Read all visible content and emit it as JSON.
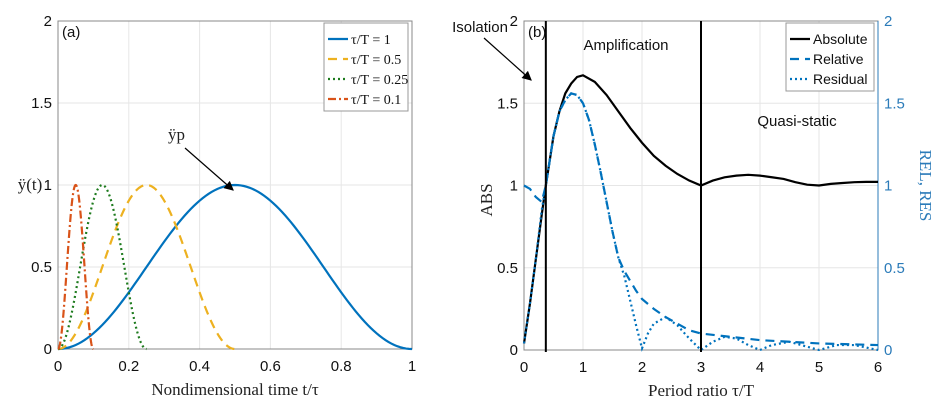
{
  "chart_data": [
    {
      "type": "line",
      "panel_label": "(a)",
      "xlabel": "Nondimensional time t/τ",
      "ylabel": "ÿ(t)",
      "xlim": [
        0,
        1
      ],
      "ylim": [
        0,
        2
      ],
      "xticks": [
        "0",
        "0.2",
        "0.4",
        "0.6",
        "0.8",
        "1"
      ],
      "yticks": [
        "0",
        "0.5",
        "1",
        "1.5",
        "2"
      ],
      "grid": true,
      "legend_position": "top-right",
      "annotation": "ÿp",
      "series": [
        {
          "name": "τ/T = 1",
          "duration": 1,
          "color": "#0072BD",
          "style": "solid"
        },
        {
          "name": "τ/T = 0.5",
          "duration": 0.5,
          "color": "#EDB120",
          "style": "dashed"
        },
        {
          "name": "τ/T = 0.25",
          "duration": 0.25,
          "color": "#1E7B1E",
          "style": "dotted"
        },
        {
          "name": "τ/T = 0.1",
          "duration": 0.1,
          "color": "#D95319",
          "style": "dashdot"
        }
      ]
    },
    {
      "type": "line",
      "panel_label": "(b)",
      "xlabel": "Period ratio τ/T",
      "ylabel": "ABS",
      "ylabel_right": "REL, RES",
      "xlim": [
        0,
        6
      ],
      "ylim": [
        0,
        2
      ],
      "ylim_right": [
        0,
        2
      ],
      "xticks": [
        "0",
        "1",
        "2",
        "3",
        "4",
        "5",
        "6"
      ],
      "yticks": [
        "0",
        "0.5",
        "1",
        "1.5",
        "2"
      ],
      "yticks_right": [
        "0",
        "0.5",
        "1",
        "1.5",
        "2"
      ],
      "grid": true,
      "legend_position": "top-right",
      "vertical_lines": [
        0.37,
        3
      ],
      "region_labels": [
        "Isolation",
        "Amplification",
        "Quasi-static"
      ],
      "series": [
        {
          "name": "Absolute",
          "color": "#000000",
          "style": "solid",
          "axis": "left",
          "x": [
            0,
            0.1,
            0.2,
            0.3,
            0.37,
            0.5,
            0.6,
            0.7,
            0.8,
            0.9,
            1,
            1.2,
            1.4,
            1.6,
            1.8,
            2,
            2.2,
            2.4,
            2.6,
            2.8,
            3,
            3.2,
            3.4,
            3.6,
            3.8,
            4,
            4.2,
            4.4,
            4.6,
            4.8,
            5,
            5.2,
            5.4,
            5.6,
            5.8,
            6
          ],
          "y": [
            0.04,
            0.28,
            0.55,
            0.82,
            1.0,
            1.3,
            1.45,
            1.56,
            1.62,
            1.66,
            1.67,
            1.63,
            1.55,
            1.45,
            1.35,
            1.26,
            1.18,
            1.12,
            1.07,
            1.03,
            1.0,
            1.03,
            1.05,
            1.06,
            1.065,
            1.06,
            1.05,
            1.04,
            1.02,
            1.005,
            1.0,
            1.01,
            1.015,
            1.02,
            1.022,
            1.022
          ]
        },
        {
          "name": "Relative",
          "color": "#0072BD",
          "style": "dashed",
          "axis": "right",
          "x": [
            0,
            0.1,
            0.2,
            0.3,
            0.37,
            0.5,
            0.6,
            0.7,
            0.8,
            0.9,
            1,
            1.1,
            1.2,
            1.3,
            1.4,
            1.5,
            1.6,
            1.7,
            1.8,
            1.9,
            2,
            2.2,
            2.4,
            2.6,
            2.8,
            3,
            3.5,
            4,
            4.5,
            5,
            5.5,
            6
          ],
          "y": [
            1.0,
            0.98,
            0.93,
            0.9,
            1.0,
            1.3,
            1.45,
            1.52,
            1.56,
            1.55,
            1.5,
            1.4,
            1.25,
            1.08,
            0.9,
            0.72,
            0.56,
            0.48,
            0.42,
            0.36,
            0.31,
            0.25,
            0.2,
            0.16,
            0.12,
            0.1,
            0.08,
            0.06,
            0.05,
            0.04,
            0.035,
            0.03
          ]
        },
        {
          "name": "Residual",
          "color": "#0072BD",
          "style": "dotted",
          "axis": "right",
          "x": [
            0,
            0.1,
            0.2,
            0.3,
            0.37,
            0.5,
            0.6,
            0.7,
            0.8,
            0.9,
            1,
            1.1,
            1.2,
            1.3,
            1.4,
            1.5,
            1.6,
            1.7,
            1.8,
            1.9,
            2,
            2.1,
            2.2,
            2.4,
            2.6,
            2.8,
            3,
            3.2,
            3.4,
            3.6,
            3.8,
            4,
            4.2,
            4.5,
            4.8,
            5,
            5.3,
            5.6,
            6
          ],
          "y": [
            0.04,
            0.28,
            0.55,
            0.85,
            1.0,
            1.3,
            1.45,
            1.52,
            1.56,
            1.55,
            1.5,
            1.4,
            1.25,
            1.08,
            0.9,
            0.72,
            0.56,
            0.45,
            0.3,
            0.15,
            0.01,
            0.1,
            0.16,
            0.2,
            0.15,
            0.07,
            0.0,
            0.05,
            0.08,
            0.07,
            0.03,
            0.0,
            0.03,
            0.05,
            0.02,
            0.0,
            0.03,
            0.03,
            0.0
          ]
        }
      ]
    }
  ]
}
